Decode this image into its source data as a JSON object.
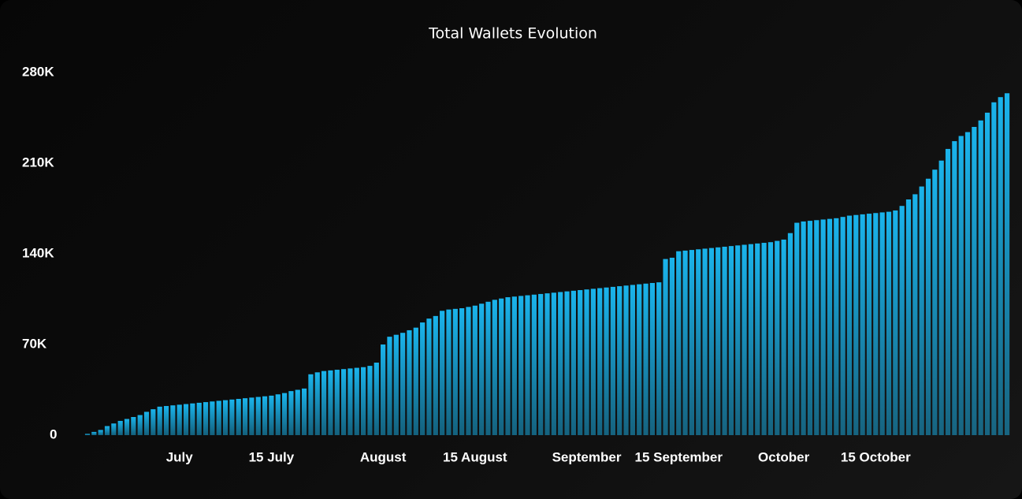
{
  "chart_data": {
    "type": "bar",
    "title": "Total Wallets Evolution",
    "categories": [
      null,
      null,
      null,
      null,
      null,
      null,
      null,
      null,
      null,
      null,
      null,
      null,
      null,
      null,
      "July",
      null,
      null,
      null,
      null,
      null,
      null,
      null,
      null,
      null,
      null,
      null,
      null,
      null,
      "15 July",
      null,
      null,
      null,
      null,
      null,
      null,
      null,
      null,
      null,
      null,
      null,
      null,
      null,
      null,
      null,
      null,
      "August",
      null,
      null,
      null,
      null,
      null,
      null,
      null,
      null,
      null,
      null,
      null,
      null,
      null,
      "15 August",
      null,
      null,
      null,
      null,
      null,
      null,
      null,
      null,
      null,
      null,
      null,
      null,
      null,
      null,
      null,
      null,
      "September",
      null,
      null,
      null,
      null,
      null,
      null,
      null,
      null,
      null,
      null,
      null,
      null,
      null,
      "15 September",
      null,
      null,
      null,
      null,
      null,
      null,
      null,
      null,
      null,
      null,
      null,
      null,
      null,
      null,
      null,
      "October",
      null,
      null,
      null,
      null,
      null,
      null,
      null,
      null,
      null,
      null,
      null,
      null,
      null,
      "15 October",
      null,
      null,
      null,
      null,
      null,
      null,
      null,
      null,
      null,
      null,
      null,
      null,
      null,
      null,
      null,
      null,
      null,
      null,
      null,
      null
    ],
    "values": [
      1000,
      2500,
      4000,
      7000,
      9000,
      11000,
      12500,
      14000,
      15500,
      18000,
      20000,
      22000,
      22500,
      23000,
      23500,
      24000,
      24500,
      25000,
      25500,
      26000,
      26500,
      27000,
      27500,
      28000,
      28500,
      29000,
      29500,
      30000,
      30500,
      31500,
      32500,
      34000,
      35000,
      36000,
      47000,
      48500,
      49500,
      50000,
      50500,
      51000,
      51500,
      52000,
      52500,
      53500,
      56000,
      70000,
      76000,
      77500,
      79000,
      81000,
      83000,
      87000,
      90000,
      92000,
      96000,
      97000,
      97500,
      98000,
      99000,
      100000,
      101500,
      103000,
      104500,
      105500,
      106500,
      107000,
      107500,
      108000,
      108500,
      109000,
      109500,
      110000,
      110500,
      111000,
      111500,
      112000,
      112500,
      113000,
      113500,
      114000,
      114500,
      115000,
      115500,
      116000,
      116500,
      117000,
      117500,
      118000,
      136000,
      137000,
      142000,
      142500,
      143000,
      143500,
      144000,
      144500,
      145000,
      145500,
      146000,
      146500,
      147000,
      147500,
      148000,
      148500,
      149000,
      150000,
      151000,
      156000,
      164000,
      165000,
      165500,
      166000,
      166500,
      167000,
      167500,
      168500,
      169500,
      170000,
      170500,
      171000,
      171500,
      172000,
      172500,
      173500,
      177000,
      182000,
      186000,
      192000,
      198000,
      205000,
      212000,
      221000,
      227000,
      231000,
      234000,
      238000,
      243000,
      249000,
      257000,
      261000,
      264000
    ],
    "color": "#1ab4ec",
    "ylim": [
      0,
      280000
    ],
    "yticks": [
      0,
      {
        "value": 70000,
        "label": "70K"
      },
      {
        "value": 140000,
        "label": "140K"
      },
      {
        "value": 210000,
        "label": "210K"
      },
      {
        "value": 280000,
        "label": "280K"
      }
    ]
  }
}
